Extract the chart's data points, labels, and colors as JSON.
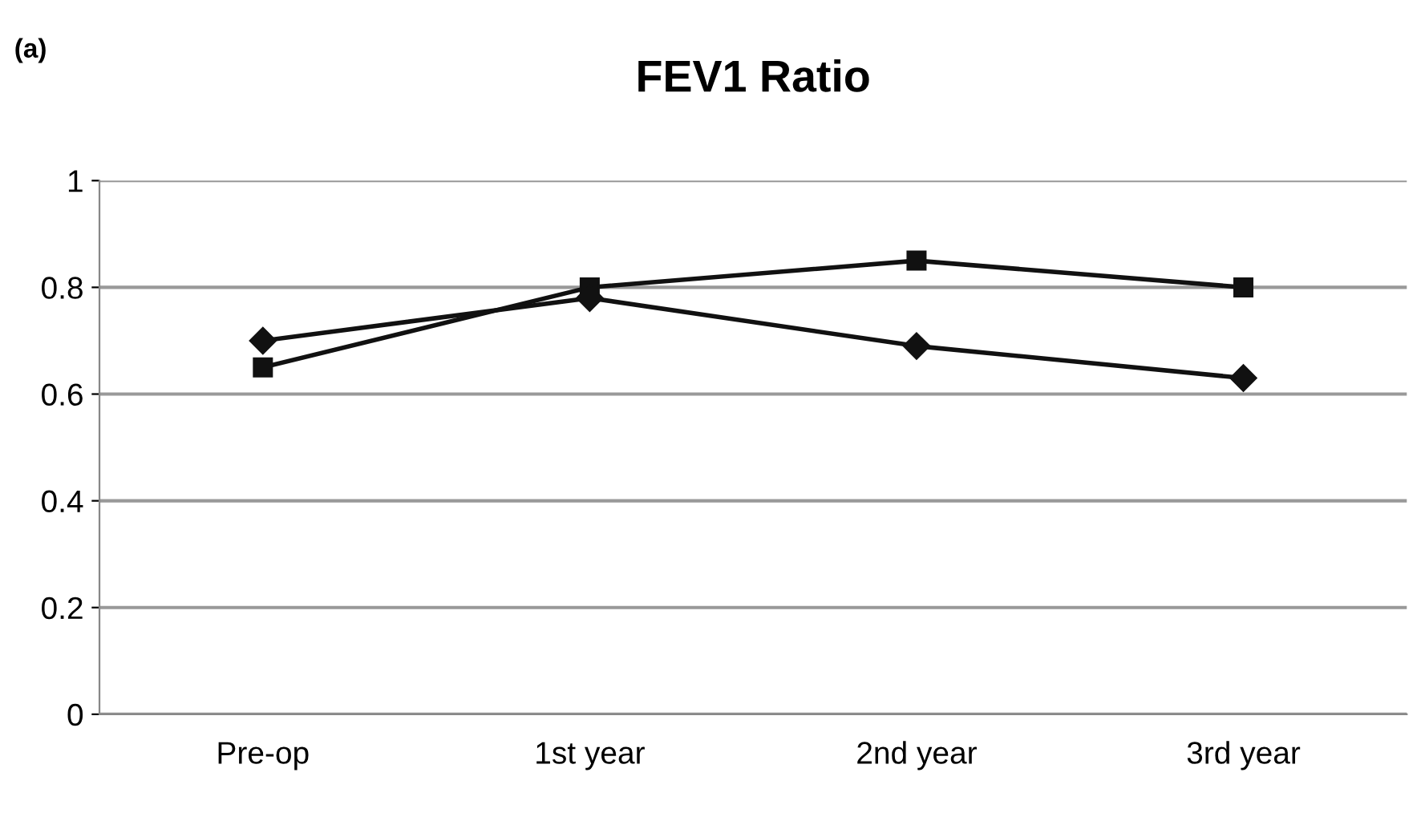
{
  "chart_data": {
    "type": "line",
    "title": "FEV1 Ratio",
    "annotations": [
      "(a)"
    ],
    "categories": [
      "Pre-op",
      "1st year",
      "2nd year",
      "3rd year"
    ],
    "series": [
      {
        "color": "#111111",
        "marker": "square",
        "values": [
          0.65,
          0.8,
          0.85,
          0.8
        ]
      },
      {
        "color": "#111111",
        "marker": "diamond",
        "values": [
          0.7,
          0.78,
          0.69,
          0.63
        ]
      }
    ],
    "ylim": [
      0,
      1
    ],
    "yticks": [
      0,
      0.2,
      0.4,
      0.6,
      0.8,
      1
    ],
    "grid": "y",
    "legend": false,
    "line_style": "solid"
  }
}
